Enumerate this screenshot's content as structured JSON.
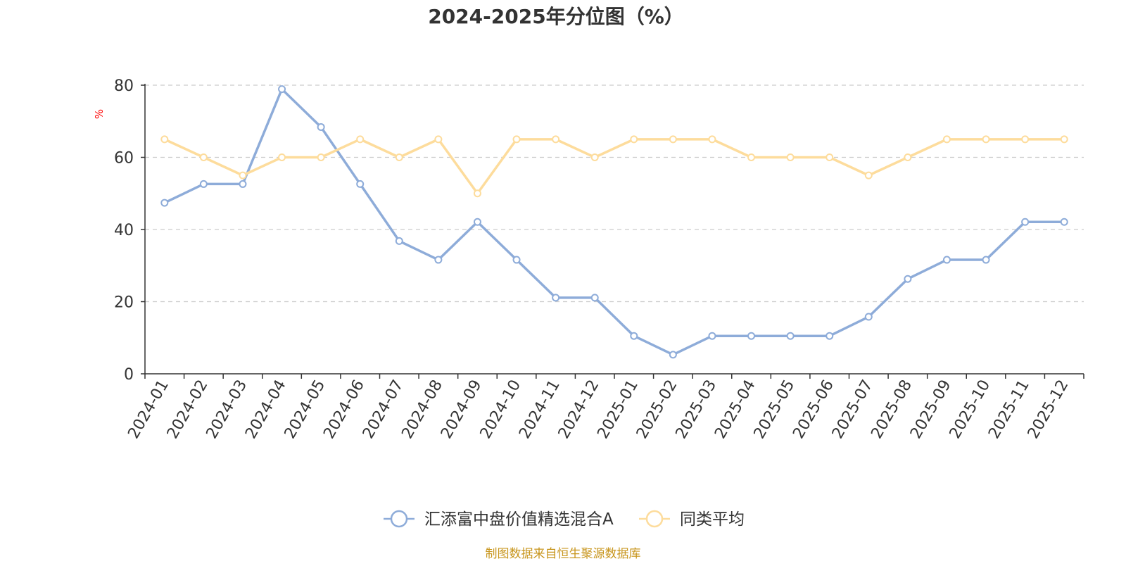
{
  "chart_data": {
    "type": "line",
    "title": "2024-2025年分位图（%）",
    "ylabel": "%",
    "xlabel": "",
    "ylim": [
      0,
      80
    ],
    "yticks": [
      0,
      20,
      40,
      60,
      80
    ],
    "grid": true,
    "legend_position": "bottom-center",
    "categories": [
      "2024-01",
      "2024-02",
      "2024-03",
      "2024-04",
      "2024-05",
      "2024-06",
      "2024-07",
      "2024-08",
      "2024-09",
      "2024-10",
      "2024-11",
      "2024-12",
      "2025-01",
      "2025-02",
      "2025-03",
      "2025-04",
      "2025-05",
      "2025-06",
      "2025-07",
      "2025-08",
      "2025-09",
      "2025-10",
      "2025-11",
      "2025-12"
    ],
    "series": [
      {
        "name": "汇添富中盘价值精选混合A",
        "color": "#8eacd9",
        "values": [
          47.4,
          52.6,
          52.6,
          78.9,
          68.4,
          52.6,
          36.8,
          31.6,
          42.1,
          31.6,
          21.1,
          21.1,
          10.5,
          5.3,
          10.5,
          10.5,
          10.5,
          10.5,
          15.8,
          26.3,
          31.6,
          31.6,
          42.1,
          42.1
        ]
      },
      {
        "name": "同类平均",
        "color": "#fddc9c",
        "values": [
          65,
          60,
          55,
          60,
          60,
          65,
          60,
          65,
          50,
          65,
          65,
          60,
          65,
          65,
          65,
          60,
          60,
          60,
          55,
          60,
          65,
          65,
          65,
          65
        ]
      }
    ]
  },
  "source_text": "制图数据来自恒生聚源数据库",
  "colors": {
    "title": "#333333",
    "axis_text": "#333333",
    "ylabel": "#ff0000",
    "grid": "#cccccc",
    "source": "#c8961e"
  }
}
